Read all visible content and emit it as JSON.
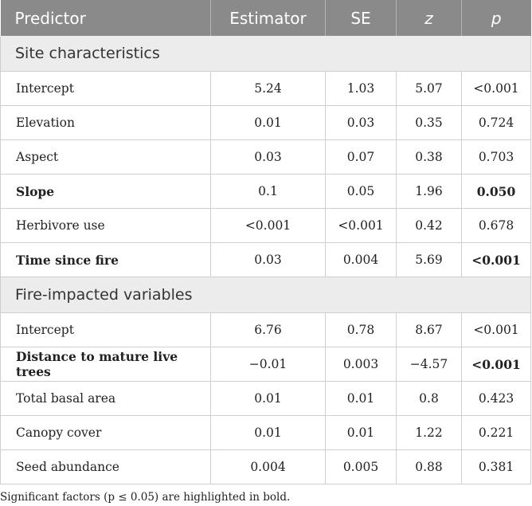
{
  "headers": [
    "Predictor",
    "Estimator",
    "SE",
    "z",
    "p"
  ],
  "groups": [
    {
      "title": "Site characteristics",
      "rows": [
        {
          "predictor": "Intercept",
          "estimator": "5.24",
          "se": "1.03",
          "z": "5.07",
          "p": "<0.001",
          "bold_predictor": false,
          "bold_p": false
        },
        {
          "predictor": "Elevation",
          "estimator": "0.01",
          "se": "0.03",
          "z": "0.35",
          "p": "0.724",
          "bold_predictor": false,
          "bold_p": false
        },
        {
          "predictor": "Aspect",
          "estimator": "0.03",
          "se": "0.07",
          "z": "0.38",
          "p": "0.703",
          "bold_predictor": false,
          "bold_p": false
        },
        {
          "predictor": "Slope",
          "estimator": "0.1",
          "se": "0.05",
          "z": "1.96",
          "p": "0.050",
          "bold_predictor": true,
          "bold_p": true
        },
        {
          "predictor": "Herbivore use",
          "estimator": "<0.001",
          "se": "<0.001",
          "z": "0.42",
          "p": "0.678",
          "bold_predictor": false,
          "bold_p": false
        },
        {
          "predictor": "Time since fire",
          "estimator": "0.03",
          "se": "0.004",
          "z": "5.69",
          "p": "<0.001",
          "bold_predictor": true,
          "bold_p": true
        }
      ]
    },
    {
      "title": "Fire-impacted variables",
      "rows": [
        {
          "predictor": "Intercept",
          "estimator": "6.76",
          "se": "0.78",
          "z": "8.67",
          "p": "<0.001",
          "bold_predictor": false,
          "bold_p": false
        },
        {
          "predictor": "Distance to mature live trees",
          "estimator": "−0.01",
          "se": "0.003",
          "z": "−4.57",
          "p": "<0.001",
          "bold_predictor": true,
          "bold_p": true
        },
        {
          "predictor": "Total basal area",
          "estimator": "0.01",
          "se": "0.01",
          "z": "0.8",
          "p": "0.423",
          "bold_predictor": false,
          "bold_p": false
        },
        {
          "predictor": "Canopy cover",
          "estimator": "0.01",
          "se": "0.01",
          "z": "1.22",
          "p": "0.221",
          "bold_predictor": false,
          "bold_p": false
        },
        {
          "predictor": "Seed abundance",
          "estimator": "0.004",
          "se": "0.005",
          "z": "0.88",
          "p": "0.381",
          "bold_predictor": false,
          "bold_p": false
        }
      ]
    }
  ],
  "footnote": "Significant factors (p ≤ 0.05) are highlighted in bold."
}
